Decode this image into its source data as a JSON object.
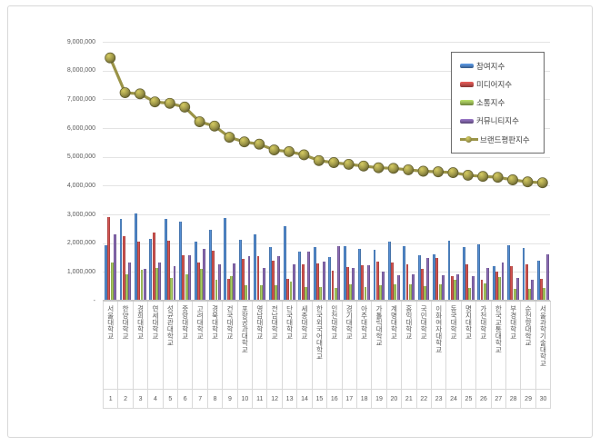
{
  "chart_data": {
    "type": "combo",
    "title": "",
    "legend_position": "top-right",
    "grid": true,
    "y_axis": {
      "min": 0,
      "max": 9000000,
      "step": 1000000,
      "tick_labels": [
        "9,000,000",
        "8,000,000",
        "7,000,000",
        "6,000,000",
        "5,000,000",
        "4,000,000",
        "3,000,000",
        "2,000,000",
        "1,000,000",
        "-"
      ]
    },
    "categories": [
      "서울대학교",
      "한양대학교",
      "경희대학교",
      "연세대학교",
      "성균관대학교",
      "중앙대학교",
      "고려대학교",
      "경북대학교",
      "건국대학교",
      "포항공과대학교",
      "영남대학교",
      "전남대학교",
      "단국대학교",
      "세종대학교",
      "한국외국어대학교",
      "인천대학교",
      "경기대학교",
      "아주대학교",
      "가톨릭대학교",
      "계명대학교",
      "홍익대학교",
      "국민대학교",
      "이화여자대학교",
      "동국대학교",
      "명지대학교",
      "가천대학교",
      "한국교통대학교",
      "부경대학교",
      "순천향대학교",
      "서울과학기술대학교"
    ],
    "ranks": [
      "1",
      "2",
      "3",
      "4",
      "5",
      "6",
      "7",
      "8",
      "9",
      "10",
      "11",
      "12",
      "13",
      "14",
      "15",
      "16",
      "17",
      "18",
      "19",
      "20",
      "21",
      "22",
      "23",
      "24",
      "25",
      "26",
      "27",
      "28",
      "29",
      "30"
    ],
    "series": [
      {
        "key": "participation-index",
        "name": "참여지수",
        "type": "bar",
        "color": "#4a7cb8",
        "values": [
          1900000,
          2800000,
          3010000,
          2120000,
          2800000,
          2720000,
          2030000,
          2430000,
          2830000,
          2090000,
          2270000,
          1820000,
          2570000,
          1660000,
          1820000,
          1500000,
          1870000,
          1760000,
          1730000,
          2030000,
          1850000,
          1540000,
          1590000,
          2040000,
          1830000,
          1930000,
          1170000,
          1900000,
          1800000,
          1350000
        ]
      },
      {
        "key": "media-index",
        "name": "미디어지수",
        "type": "bar",
        "color": "#b94a47",
        "values": [
          2880000,
          2210000,
          2010000,
          2330000,
          2040000,
          1540000,
          1300000,
          1690000,
          720000,
          1410000,
          1510000,
          1350000,
          730000,
          1240000,
          1250000,
          1010000,
          1150000,
          1210000,
          1320000,
          1280000,
          1240000,
          1060000,
          1450000,
          830000,
          1220000,
          700000,
          990000,
          1160000,
          1220000,
          740000
        ]
      },
      {
        "key": "communication-index",
        "name": "소통지수",
        "type": "bar",
        "color": "#94b253",
        "values": [
          1290000,
          890000,
          1050000,
          1110000,
          760000,
          880000,
          1060000,
          700000,
          820000,
          500000,
          500000,
          500000,
          620000,
          450000,
          440000,
          400000,
          540000,
          440000,
          520000,
          540000,
          540000,
          460000,
          540000,
          690000,
          420000,
          570000,
          800000,
          380000,
          380000,
          400000
        ]
      },
      {
        "key": "community-index",
        "name": "커뮤니티지수",
        "type": "bar",
        "color": "#795e9e",
        "values": [
          2280000,
          1280000,
          1070000,
          1290000,
          1160000,
          1540000,
          1770000,
          1220000,
          1250000,
          1530000,
          1100000,
          1530000,
          1220000,
          1680000,
          1330000,
          1870000,
          1120000,
          1200000,
          990000,
          840000,
          880000,
          1460000,
          850000,
          880000,
          830000,
          1110000,
          1280000,
          760000,
          700000,
          1590000
        ]
      },
      {
        "key": "brand-reputation-index",
        "name": "브랜드평판지수",
        "type": "line",
        "color": "#9a9347",
        "values": [
          8440000,
          7230000,
          7190000,
          6910000,
          6860000,
          6730000,
          6220000,
          6070000,
          5680000,
          5520000,
          5440000,
          5240000,
          5180000,
          5070000,
          4870000,
          4800000,
          4740000,
          4680000,
          4620000,
          4600000,
          4550000,
          4500000,
          4480000,
          4450000,
          4360000,
          4320000,
          4290000,
          4200000,
          4130000,
          4100000
        ]
      }
    ]
  }
}
